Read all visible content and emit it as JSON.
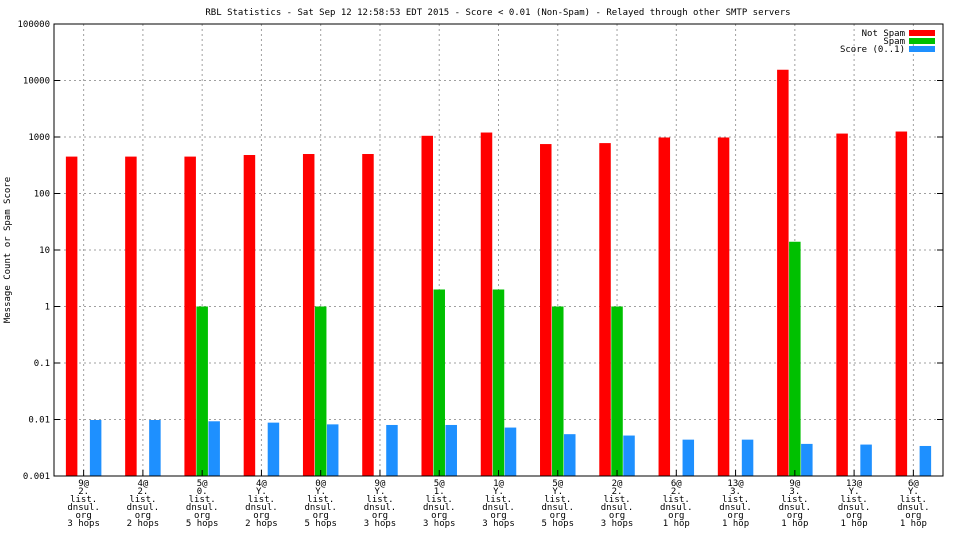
{
  "chart_data": {
    "type": "bar",
    "title": "RBL Statistics - Sat Sep 12 12:58:53 EDT 2015 - Score < 0.01 (Non-Spam) - Relayed through other SMTP servers",
    "ylabel": "Message Count or Spam Score",
    "xlabel": "",
    "yscale": "log",
    "ylim": [
      0.001,
      100000
    ],
    "yticks": [
      "0.001",
      "0.01",
      "0.1",
      "1",
      "10",
      "100",
      "1000",
      "10000",
      "100000"
    ],
    "grid": true,
    "legend_position": "top-right",
    "categories": [
      [
        "9@",
        "2.",
        "list.",
        "dnsul.",
        "org",
        "3 hops"
      ],
      [
        "4@",
        "2.",
        "list.",
        "dnsul.",
        "org",
        "2 hops"
      ],
      [
        "5@",
        "0.",
        "list.",
        "dnsul.",
        "org",
        "5 hops"
      ],
      [
        "4@",
        "Y.",
        "list.",
        "dnsul.",
        "org",
        "2 hops"
      ],
      [
        "0@",
        "Y.",
        "list.",
        "dnsul.",
        "org",
        "5 hops"
      ],
      [
        "9@",
        "Y.",
        "list.",
        "dnsul.",
        "org",
        "3 hops"
      ],
      [
        "5@",
        "1.",
        "list.",
        "dnsul.",
        "org",
        "3 hops"
      ],
      [
        "1@",
        "Y.",
        "list.",
        "dnsul.",
        "org",
        "3 hops"
      ],
      [
        "5@",
        "Y.",
        "list.",
        "dnsul.",
        "org",
        "5 hops"
      ],
      [
        "2@",
        "2.",
        "list.",
        "dnsul.",
        "org",
        "3 hops"
      ],
      [
        "6@",
        "2.",
        "list.",
        "dnsul.",
        "org",
        "1 hop"
      ],
      [
        "13@",
        "3.",
        "list.",
        "dnsul.",
        "org",
        "1 hop"
      ],
      [
        "9@",
        "3.",
        "list.",
        "dnsul.",
        "org",
        "1 hop"
      ],
      [
        "13@",
        "Y.",
        "list.",
        "dnsul.",
        "org",
        "1 hop"
      ],
      [
        "6@",
        "Y.",
        "list.",
        "dnsul.",
        "org",
        "1 hop"
      ]
    ],
    "series": [
      {
        "name": "Not Spam",
        "color": "#ff0000",
        "values": [
          450,
          450,
          450,
          480,
          500,
          500,
          1050,
          1200,
          750,
          780,
          980,
          980,
          15500,
          1150,
          1250
        ]
      },
      {
        "name": "Spam",
        "color": "#00c000",
        "values": [
          null,
          null,
          1,
          null,
          1,
          null,
          2,
          2,
          1,
          1,
          null,
          null,
          14,
          null,
          null
        ]
      },
      {
        "name": "Score (0..1)",
        "color": "#1e90ff",
        "values": [
          0.0098,
          0.0098,
          0.0093,
          0.0088,
          0.0082,
          0.008,
          0.008,
          0.0072,
          0.0055,
          0.0052,
          0.0044,
          0.0044,
          0.0037,
          0.0036,
          0.0034
        ]
      }
    ]
  }
}
